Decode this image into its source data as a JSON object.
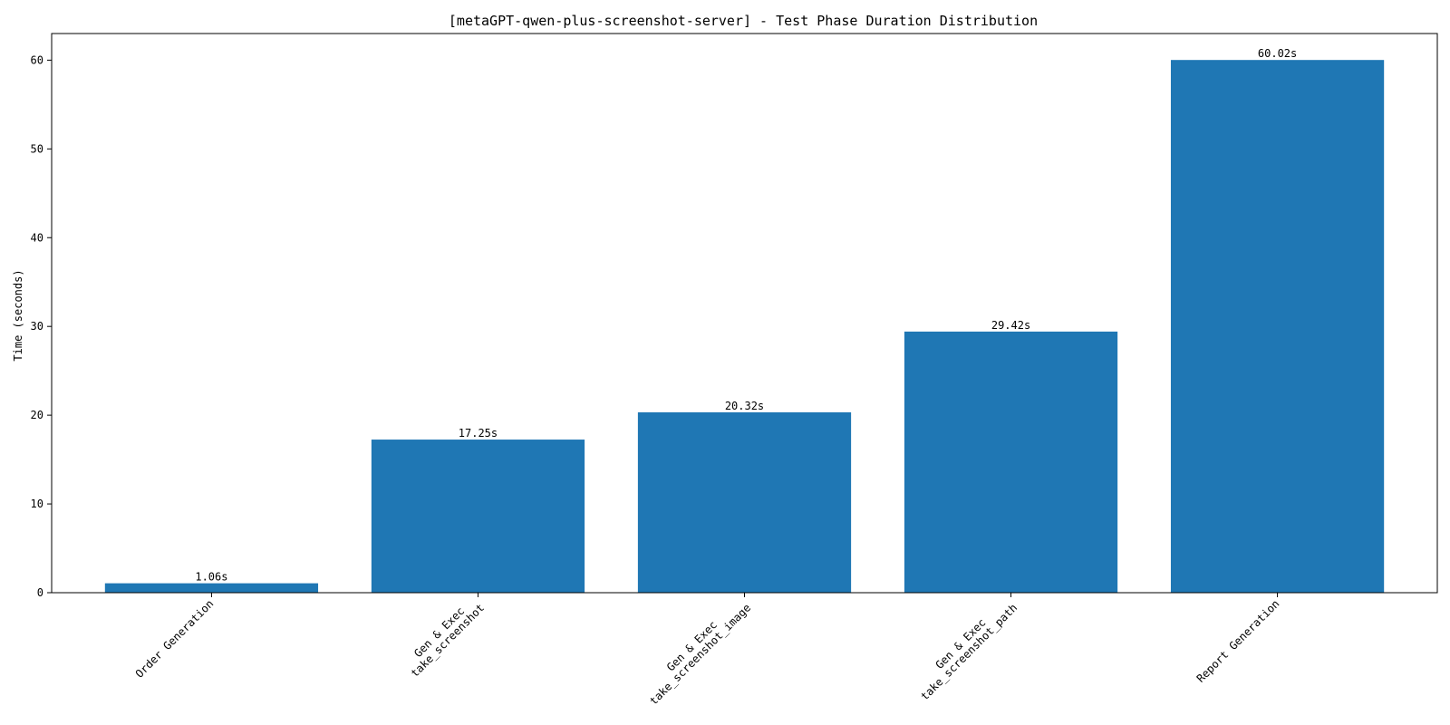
{
  "chart_data": {
    "type": "bar",
    "title": "[metaGPT-qwen-plus-screenshot-server] - Test Phase Duration Distribution",
    "xlabel": "",
    "ylabel": "Time (seconds)",
    "categories": [
      [
        "Order Generation"
      ],
      [
        "Gen & Exec",
        "take_screenshot"
      ],
      [
        "Gen & Exec",
        "take_screenshot_image"
      ],
      [
        "Gen & Exec",
        "take_screenshot_path"
      ],
      [
        "Report Generation"
      ]
    ],
    "values": [
      1.06,
      17.25,
      20.32,
      29.42,
      60.02
    ],
    "value_labels": [
      "1.06s",
      "17.25s",
      "20.32s",
      "29.42s",
      "60.02s"
    ],
    "ylim": [
      0,
      63
    ],
    "yticks": [
      0,
      10,
      20,
      30,
      40,
      50,
      60
    ],
    "bar_color": "#1f77b4",
    "grid": false,
    "legend": "none"
  }
}
